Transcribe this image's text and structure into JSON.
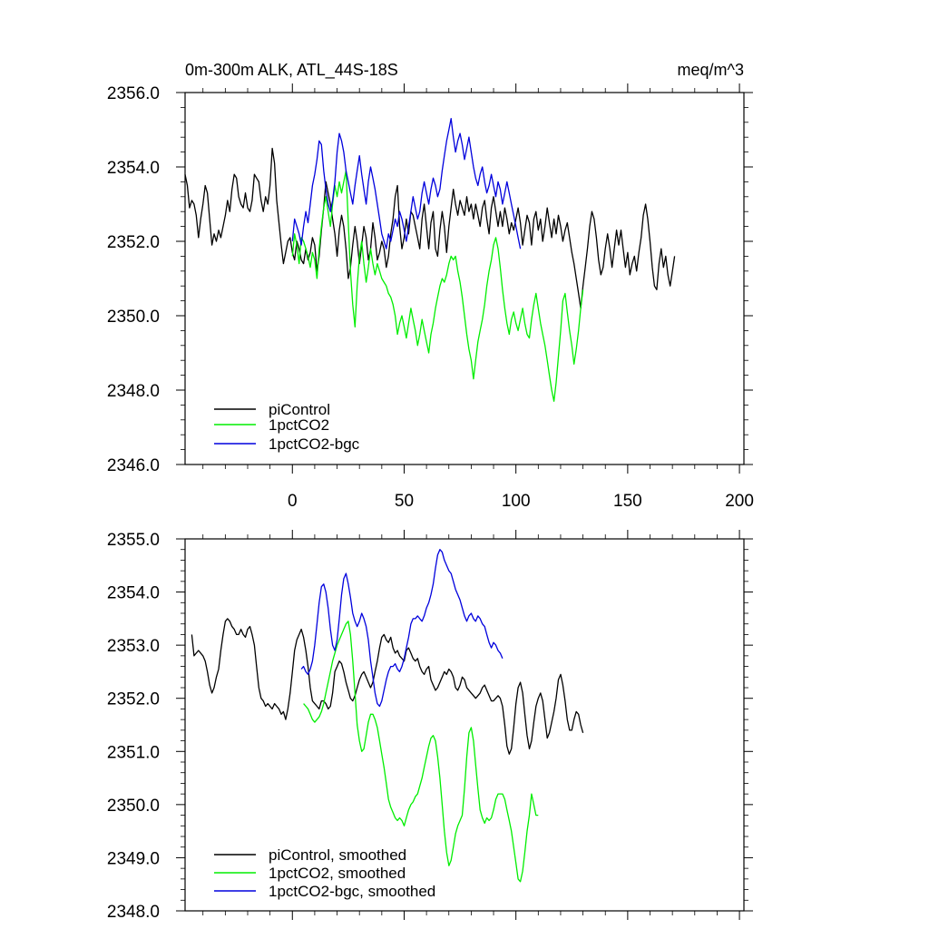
{
  "colors": {
    "piControl": "#000000",
    "pct": "#00ee00",
    "bgc": "#0000dd",
    "axis": "#000000",
    "background": "#ffffff"
  },
  "chart_data": [
    {
      "type": "line",
      "title": "0m-300m ALK, ATL_44S-18S",
      "units": "meq/m^3",
      "xlim": [
        -48,
        202
      ],
      "ylim": [
        2346.0,
        2356.0
      ],
      "xtick_values": [
        0,
        50,
        100,
        150,
        200
      ],
      "xtick_labels": [
        "0",
        "50",
        "100",
        "150",
        "200"
      ],
      "ytick_values": [
        2346,
        2348,
        2350,
        2352,
        2354,
        2356
      ],
      "ytick_labels": [
        "2346.0",
        "2348.0",
        "2350.0",
        "2352.0",
        "2354.0",
        "2356.0"
      ],
      "legend": {
        "position": "bottom-left",
        "entries": [
          "piControl",
          "1pctCO2",
          "1pctCO2-bgc"
        ]
      },
      "series": [
        {
          "name": "piControl",
          "color": "#000000",
          "x_start": -48,
          "x_step": 1,
          "values": [
            2353.8,
            2353.5,
            2352.9,
            2353.1,
            2353.0,
            2352.7,
            2352.1,
            2352.6,
            2353.0,
            2353.5,
            2353.3,
            2352.6,
            2351.9,
            2352.2,
            2352.0,
            2352.3,
            2352.1,
            2352.4,
            2352.7,
            2353.1,
            2352.8,
            2353.4,
            2353.8,
            2353.7,
            2353.2,
            2353.0,
            2352.9,
            2353.3,
            2352.9,
            2352.8,
            2353.1,
            2353.8,
            2353.7,
            2353.6,
            2353.1,
            2352.8,
            2353.2,
            2353.0,
            2353.5,
            2354.5,
            2354.1,
            2353.1,
            2352.5,
            2351.9,
            2351.4,
            2351.7,
            2352.0,
            2352.1,
            2351.7,
            2351.5,
            2352.0,
            2351.8,
            2351.5,
            2351.4,
            2351.8,
            2351.5,
            2351.7,
            2352.1,
            2351.9,
            2351.2,
            2351.6,
            2352.3,
            2352.9,
            2353.6,
            2353.3,
            2353.0,
            2352.6,
            2352.2,
            2351.6,
            2352.3,
            2352.7,
            2352.4,
            2351.8,
            2351.0,
            2351.3,
            2351.9,
            2352.4,
            2352.0,
            2351.4,
            2351.9,
            2352.4,
            2352.1,
            2351.5,
            2351.8,
            2352.5,
            2352.1,
            2351.5,
            2351.7,
            2352.0,
            2351.8,
            2351.3,
            2351.6,
            2352.2,
            2352.6,
            2353.2,
            2353.5,
            2352.4,
            2351.8,
            2352.1,
            2352.6,
            2352.2,
            2352.8,
            2352.7,
            2352.4,
            2352.1,
            2351.8,
            2352.6,
            2353.0,
            2352.4,
            2351.8,
            2352.5,
            2352.8,
            2351.8,
            2351.6,
            2352.3,
            2352.8,
            2352.4,
            2351.7,
            2352.4,
            2352.9,
            2353.4,
            2353.0,
            2352.7,
            2353.1,
            2352.9,
            2352.7,
            2353.2,
            2352.8,
            2353.0,
            2352.6,
            2353.0,
            2352.7,
            2352.4,
            2352.9,
            2353.1,
            2352.6,
            2352.2,
            2352.9,
            2353.2,
            2352.8,
            2352.4,
            2352.8,
            2352.4,
            2352.9,
            2352.6,
            2352.2,
            2352.5,
            2352.3,
            2352.6,
            2352.9,
            2352.5,
            2351.9,
            2352.3,
            2352.7,
            2352.5,
            2351.9,
            2352.6,
            2352.8,
            2352.3,
            2352.6,
            2352.0,
            2352.4,
            2352.9,
            2352.5,
            2352.1,
            2352.6,
            2352.2,
            2352.7,
            2352.4,
            2352.0,
            2352.3,
            2352.5,
            2352.1,
            2351.7,
            2351.4,
            2351.0,
            2350.6,
            2350.2,
            2350.8,
            2351.3,
            2351.8,
            2352.4,
            2352.8,
            2352.6,
            2352.1,
            2351.5,
            2351.1,
            2351.3,
            2351.8,
            2352.2,
            2351.8,
            2351.3,
            2351.8,
            2352.3,
            2351.9,
            2352.3,
            2351.8,
            2351.3,
            2351.7,
            2351.1,
            2351.4,
            2351.6,
            2351.2,
            2351.7,
            2352.1,
            2352.7,
            2353.0,
            2352.6,
            2352.0,
            2351.3,
            2350.8,
            2350.7,
            2351.4,
            2351.8,
            2351.3,
            2351.6,
            2351.1,
            2350.8,
            2351.2,
            2351.6
          ]
        },
        {
          "name": "1pctCO2",
          "color": "#00ee00",
          "x_start": 0,
          "x_step": 1,
          "values": [
            2351.6,
            2352.2,
            2351.9,
            2351.4,
            2352.1,
            2352.0,
            2351.8,
            2351.6,
            2351.3,
            2351.7,
            2351.5,
            2351.0,
            2351.8,
            2352.4,
            2352.9,
            2353.2,
            2352.8,
            2352.4,
            2353.0,
            2353.5,
            2353.2,
            2353.6,
            2353.3,
            2353.6,
            2353.9,
            2352.5,
            2351.2,
            2350.3,
            2349.7,
            2350.8,
            2351.6,
            2352.0,
            2351.4,
            2350.9,
            2351.3,
            2351.8,
            2351.4,
            2351.1,
            2351.4,
            2351.2,
            2351.0,
            2350.9,
            2350.8,
            2350.6,
            2350.5,
            2350.3,
            2350.0,
            2349.5,
            2349.8,
            2350.0,
            2349.7,
            2349.4,
            2349.8,
            2350.2,
            2349.9,
            2349.6,
            2349.2,
            2349.5,
            2349.9,
            2349.6,
            2349.3,
            2349.0,
            2349.5,
            2349.8,
            2350.2,
            2350.5,
            2350.8,
            2351.0,
            2350.9,
            2351.1,
            2351.4,
            2351.6,
            2351.5,
            2351.6,
            2351.2,
            2350.9,
            2350.5,
            2350.0,
            2349.5,
            2349.1,
            2348.8,
            2348.3,
            2348.8,
            2349.3,
            2349.6,
            2349.9,
            2350.3,
            2350.8,
            2351.2,
            2351.5,
            2351.9,
            2352.1,
            2351.8,
            2351.3,
            2350.7,
            2350.2,
            2349.8,
            2349.5,
            2349.9,
            2350.1,
            2349.8,
            2349.6,
            2349.9,
            2350.2,
            2349.8,
            2349.5,
            2349.4,
            2349.9,
            2350.3,
            2350.6,
            2350.2,
            2349.8,
            2349.5,
            2349.2,
            2348.8,
            2348.4,
            2348.0,
            2347.7,
            2348.2,
            2348.9,
            2349.6,
            2350.4,
            2350.6,
            2350.1,
            2349.6,
            2349.2,
            2348.7,
            2349.1,
            2349.6,
            2350.2,
            2350.7
          ]
        },
        {
          "name": "1pctCO2-bgc",
          "color": "#0000dd",
          "x_start": 0,
          "x_step": 1,
          "values": [
            2352.0,
            2352.6,
            2352.4,
            2352.2,
            2351.9,
            2352.4,
            2352.8,
            2352.5,
            2353.0,
            2353.5,
            2353.8,
            2354.2,
            2354.7,
            2354.6,
            2353.9,
            2353.4,
            2353.0,
            2352.8,
            2353.1,
            2353.6,
            2354.4,
            2354.9,
            2354.7,
            2354.4,
            2353.9,
            2353.6,
            2353.3,
            2353.0,
            2353.5,
            2353.9,
            2354.3,
            2353.8,
            2353.4,
            2353.0,
            2353.6,
            2354.0,
            2353.7,
            2353.4,
            2353.0,
            2352.6,
            2352.2,
            2352.0,
            2351.8,
            2352.2,
            2352.0,
            2352.3,
            2352.6,
            2352.4,
            2352.8,
            2352.6,
            2352.3,
            2352.0,
            2352.4,
            2352.8,
            2353.2,
            2352.9,
            2352.6,
            2352.8,
            2353.3,
            2353.6,
            2353.3,
            2353.0,
            2353.4,
            2353.7,
            2353.5,
            2353.2,
            2353.4,
            2353.9,
            2354.3,
            2354.7,
            2355.0,
            2355.3,
            2354.8,
            2354.4,
            2354.7,
            2354.9,
            2354.6,
            2354.2,
            2354.5,
            2354.8,
            2354.4,
            2354.0,
            2353.7,
            2353.5,
            2353.8,
            2354.0,
            2353.6,
            2353.3,
            2353.5,
            2353.8,
            2353.5,
            2353.2,
            2353.6,
            2353.4,
            2353.0,
            2353.3,
            2353.6,
            2353.3,
            2353.0,
            2352.7,
            2352.4,
            2352.1,
            2351.8
          ]
        }
      ]
    },
    {
      "type": "line",
      "xlim": [
        -48,
        202
      ],
      "ylim": [
        2348.0,
        2355.0
      ],
      "xtick_values": [
        0,
        50,
        100,
        150,
        200
      ],
      "ytick_values": [
        2348,
        2349,
        2350,
        2351,
        2352,
        2353,
        2354,
        2355
      ],
      "ytick_labels": [
        "2348.0",
        "2349.0",
        "2350.0",
        "2351.0",
        "2352.0",
        "2353.0",
        "2354.0",
        "2355.0"
      ],
      "legend": {
        "position": "bottom-left",
        "entries": [
          "piControl, smoothed",
          "1pctCO2, smoothed",
          "1pctCO2-bgc, smoothed"
        ]
      },
      "series": [
        {
          "name": "piControl, smoothed",
          "color": "#000000",
          "x_start": -45,
          "x_step": 1,
          "values": [
            2353.2,
            2352.8,
            2352.85,
            2352.9,
            2352.85,
            2352.8,
            2352.7,
            2352.5,
            2352.25,
            2352.1,
            2352.2,
            2352.4,
            2352.55,
            2352.9,
            2353.2,
            2353.45,
            2353.5,
            2353.45,
            2353.35,
            2353.3,
            2353.2,
            2353.2,
            2353.3,
            2353.2,
            2353.15,
            2353.3,
            2353.35,
            2353.2,
            2353.0,
            2352.6,
            2352.2,
            2352.0,
            2351.95,
            2351.85,
            2351.9,
            2351.85,
            2351.8,
            2351.9,
            2351.85,
            2351.8,
            2351.7,
            2351.75,
            2351.6,
            2351.8,
            2352.1,
            2352.5,
            2352.9,
            2353.1,
            2353.2,
            2353.3,
            2353.15,
            2352.9,
            2352.6,
            2352.2,
            2351.95,
            2351.9,
            2351.85,
            2351.8,
            2351.95,
            2351.95,
            2351.9,
            2351.8,
            2351.85,
            2352.1,
            2352.5,
            2352.6,
            2352.7,
            2352.65,
            2352.5,
            2352.3,
            2352.15,
            2352.0,
            2351.95,
            2352.05,
            2352.2,
            2352.35,
            2352.45,
            2352.5,
            2352.4,
            2352.3,
            2352.2,
            2352.3,
            2352.5,
            2352.7,
            2352.95,
            2353.15,
            2353.2,
            2353.1,
            2353.05,
            2353.15,
            2352.95,
            2352.85,
            2352.9,
            2352.8,
            2352.75,
            2352.7,
            2352.9,
            2352.95,
            2352.85,
            2352.75,
            2352.7,
            2352.75,
            2352.6,
            2352.5,
            2352.45,
            2352.55,
            2352.6,
            2352.35,
            2352.25,
            2352.15,
            2352.2,
            2352.3,
            2352.4,
            2352.5,
            2352.45,
            2352.55,
            2352.5,
            2352.4,
            2352.2,
            2352.15,
            2352.25,
            2352.4,
            2352.35,
            2352.2,
            2352.15,
            2352.1,
            2352.05,
            2352.0,
            2352.05,
            2352.1,
            2352.2,
            2352.25,
            2352.15,
            2352.05,
            2351.95,
            2351.95,
            2352.0,
            2352.05,
            2352.0,
            2351.85,
            2351.5,
            2351.1,
            2350.95,
            2351.05,
            2351.45,
            2351.9,
            2352.2,
            2352.3,
            2352.1,
            2351.7,
            2351.3,
            2351.05,
            2351.2,
            2351.55,
            2351.85,
            2352.0,
            2352.1,
            2351.95,
            2351.6,
            2351.25,
            2351.35,
            2351.55,
            2351.75,
            2352.0,
            2352.35,
            2352.45,
            2352.25,
            2351.95,
            2351.6,
            2351.4,
            2351.4,
            2351.6,
            2351.75,
            2351.7,
            2351.5,
            2351.35
          ]
        },
        {
          "name": "1pctCO2, smoothed",
          "color": "#00ee00",
          "x_start": 5,
          "x_step": 1,
          "values": [
            2351.9,
            2351.85,
            2351.8,
            2351.7,
            2351.6,
            2351.55,
            2351.6,
            2351.65,
            2351.75,
            2351.9,
            2352.1,
            2352.3,
            2352.5,
            2352.7,
            2352.85,
            2353.0,
            2353.1,
            2353.2,
            2353.3,
            2353.4,
            2353.45,
            2353.2,
            2352.7,
            2352.1,
            2351.5,
            2351.2,
            2351.0,
            2351.05,
            2351.3,
            2351.55,
            2351.7,
            2351.7,
            2351.6,
            2351.45,
            2351.2,
            2350.95,
            2350.7,
            2350.4,
            2350.1,
            2349.95,
            2349.85,
            2349.75,
            2349.7,
            2349.75,
            2349.7,
            2349.6,
            2349.75,
            2349.9,
            2350.0,
            2350.05,
            2350.15,
            2350.2,
            2350.35,
            2350.5,
            2350.7,
            2350.9,
            2351.1,
            2351.25,
            2351.3,
            2351.2,
            2350.9,
            2350.5,
            2350.0,
            2349.5,
            2349.1,
            2348.85,
            2348.95,
            2349.2,
            2349.45,
            2349.6,
            2349.7,
            2349.8,
            2350.3,
            2350.9,
            2351.35,
            2351.45,
            2351.2,
            2350.75,
            2350.3,
            2349.9,
            2349.75,
            2349.65,
            2349.75,
            2349.7,
            2349.75,
            2349.9,
            2350.1,
            2350.2,
            2350.2,
            2350.2,
            2350.1,
            2349.9,
            2349.7,
            2349.5,
            2349.2,
            2348.9,
            2348.6,
            2348.55,
            2348.75,
            2349.1,
            2349.5,
            2349.8,
            2350.2,
            2350.0,
            2349.8,
            2349.8
          ]
        },
        {
          "name": "1pctCO2-bgc, smoothed",
          "color": "#0000dd",
          "x_start": 4,
          "x_step": 1,
          "values": [
            2352.55,
            2352.6,
            2352.5,
            2352.45,
            2352.55,
            2352.7,
            2353.0,
            2353.4,
            2353.8,
            2354.1,
            2354.15,
            2354.0,
            2353.7,
            2353.3,
            2353.0,
            2352.9,
            2353.1,
            2353.5,
            2353.95,
            2354.25,
            2354.35,
            2354.15,
            2353.9,
            2353.6,
            2353.45,
            2353.35,
            2353.45,
            2353.6,
            2353.5,
            2353.35,
            2353.1,
            2352.7,
            2352.4,
            2352.1,
            2351.9,
            2351.85,
            2351.95,
            2352.15,
            2352.35,
            2352.5,
            2352.6,
            2352.6,
            2352.65,
            2352.55,
            2352.5,
            2352.6,
            2352.75,
            2352.95,
            2353.15,
            2353.4,
            2353.5,
            2353.5,
            2353.55,
            2353.5,
            2353.45,
            2353.55,
            2353.7,
            2353.8,
            2353.95,
            2354.15,
            2354.45,
            2354.7,
            2354.8,
            2354.75,
            2354.6,
            2354.5,
            2354.4,
            2354.35,
            2354.2,
            2354.05,
            2353.95,
            2353.85,
            2353.7,
            2353.55,
            2353.45,
            2353.55,
            2353.6,
            2353.5,
            2353.45,
            2353.55,
            2353.5,
            2353.4,
            2353.35,
            2353.2,
            2353.05,
            2352.95,
            2353.05,
            2353.0,
            2352.9,
            2352.85,
            2352.75
          ]
        }
      ]
    }
  ]
}
